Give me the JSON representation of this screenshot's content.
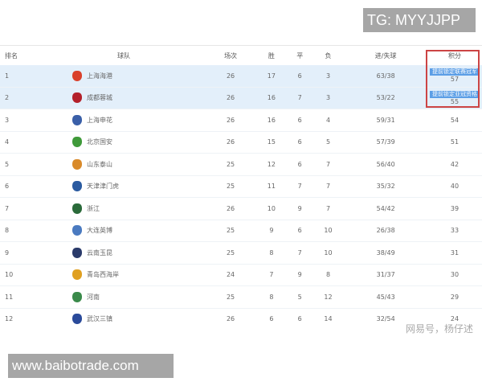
{
  "watermark_tg": "TG: MYYJJPP",
  "watermark_site": "www.baibotrade.com",
  "watermark_author": "网易号，杨仔述",
  "headers": [
    "排名",
    "球队",
    "场次",
    "胜",
    "平",
    "负",
    "进/失球",
    "积分"
  ],
  "rows": [
    {
      "rank": "1",
      "team": "上海海港",
      "p": "26",
      "w": "17",
      "d": "6",
      "l": "3",
      "g": "63/38",
      "pts": "57",
      "badge": "提前锁定联赛冠军",
      "color": "#d9402b"
    },
    {
      "rank": "2",
      "team": "成都蓉城",
      "p": "26",
      "w": "16",
      "d": "7",
      "l": "3",
      "g": "53/22",
      "pts": "55",
      "badge": "提前锁定亚冠资格",
      "color": "#b3202a"
    },
    {
      "rank": "3",
      "team": "上海申花",
      "p": "26",
      "w": "16",
      "d": "6",
      "l": "4",
      "g": "59/31",
      "pts": "54",
      "color": "#3a5fa8"
    },
    {
      "rank": "4",
      "team": "北京国安",
      "p": "26",
      "w": "15",
      "d": "6",
      "l": "5",
      "g": "57/39",
      "pts": "51",
      "color": "#3f9a3a"
    },
    {
      "rank": "5",
      "team": "山东泰山",
      "p": "25",
      "w": "12",
      "d": "6",
      "l": "7",
      "g": "56/40",
      "pts": "42",
      "color": "#d98a2a"
    },
    {
      "rank": "6",
      "team": "天津津门虎",
      "p": "25",
      "w": "11",
      "d": "7",
      "l": "7",
      "g": "35/32",
      "pts": "40",
      "color": "#2a5aa0"
    },
    {
      "rank": "7",
      "team": "浙江",
      "p": "26",
      "w": "10",
      "d": "9",
      "l": "7",
      "g": "54/42",
      "pts": "39",
      "color": "#2a6a3a"
    },
    {
      "rank": "8",
      "team": "大连英博",
      "p": "25",
      "w": "9",
      "d": "6",
      "l": "10",
      "g": "26/38",
      "pts": "33",
      "color": "#4a7ac0"
    },
    {
      "rank": "9",
      "team": "云南玉昆",
      "p": "25",
      "w": "8",
      "d": "7",
      "l": "10",
      "g": "38/49",
      "pts": "31",
      "color": "#2a3a6a"
    },
    {
      "rank": "10",
      "team": "青岛西海岸",
      "p": "24",
      "w": "7",
      "d": "9",
      "l": "8",
      "g": "31/37",
      "pts": "30",
      "color": "#e0a020"
    },
    {
      "rank": "11",
      "team": "河南",
      "p": "25",
      "w": "8",
      "d": "5",
      "l": "12",
      "g": "45/43",
      "pts": "29",
      "color": "#3a8a4a"
    },
    {
      "rank": "12",
      "team": "武汉三镇",
      "p": "26",
      "w": "6",
      "d": "6",
      "l": "14",
      "g": "32/54",
      "pts": "24",
      "color": "#2a4a9a"
    }
  ]
}
